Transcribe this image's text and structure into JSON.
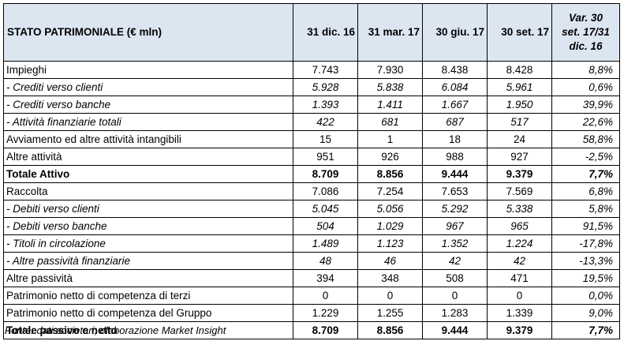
{
  "table": {
    "headers": {
      "label": "STATO PATRIMONIALE (€ mln)",
      "c1": "31 dic. 16",
      "c2": "31 mar. 17",
      "c3": "30 giu. 17",
      "c4": "30 set. 17",
      "var_line1": "Var. 30",
      "var_line2": "set. 17/31",
      "var_line3": "dic. 16"
    },
    "header_background": "#dce6f1",
    "rows": [
      {
        "label": "Impieghi",
        "v": [
          "7.743",
          "7.930",
          "8.438",
          "8.428"
        ],
        "var": "8,8%"
      },
      {
        "label": "- Crediti verso clienti",
        "v": [
          "5.928",
          "5.838",
          "6.084",
          "5.961"
        ],
        "var": "0,6%"
      },
      {
        "label": "- Crediti verso banche",
        "v": [
          "1.393",
          "1.411",
          "1.667",
          "1.950"
        ],
        "var": "39,9%"
      },
      {
        "label": "- Attività finanziarie totali",
        "v": [
          "422",
          "681",
          "687",
          "517"
        ],
        "var": "22,6%"
      },
      {
        "label": "Avviamento ed altre attività intangibili",
        "v": [
          "15",
          "1",
          "18",
          "24"
        ],
        "var": "58,8%"
      },
      {
        "label": "Altre attività",
        "v": [
          "951",
          "926",
          "988",
          "927"
        ],
        "var": "-2,5%"
      },
      {
        "label": "Totale Attivo",
        "v": [
          "8.709",
          "8.856",
          "9.444",
          "9.379"
        ],
        "var": "7,7%"
      },
      {
        "label": "Raccolta",
        "v": [
          "7.086",
          "7.254",
          "7.653",
          "7.569"
        ],
        "var": "6,8%"
      },
      {
        "label": "- Debiti verso clienti",
        "v": [
          "5.045",
          "5.056",
          "5.292",
          "5.338"
        ],
        "var": "5,8%"
      },
      {
        "label": "- Debiti verso banche",
        "v": [
          "504",
          "1.029",
          "967",
          "965"
        ],
        "var": "91,5%"
      },
      {
        "label": "- Titoli in circolazione",
        "v": [
          "1.489",
          "1.123",
          "1.352",
          "1.224"
        ],
        "var": "-17,8%"
      },
      {
        "label": "- Altre passività finanziarie",
        "v": [
          "48",
          "46",
          "42",
          "42"
        ],
        "var": "-13,3%"
      },
      {
        "label": "Altre passività",
        "v": [
          "394",
          "348",
          "508",
          "471"
        ],
        "var": "19,5%"
      },
      {
        "label": "Patrimonio netto di competenza di terzi",
        "v": [
          "0",
          "0",
          "0",
          "0"
        ],
        "var": "0,0%"
      },
      {
        "label": "Patrimonio netto di competenza del Gruppo",
        "v": [
          "1.229",
          "1.255",
          "1.283",
          "1.339"
        ],
        "var": "9,0%"
      },
      {
        "label": "Totale passivo e netto",
        "v": [
          "8.709",
          "8.856",
          "9.444",
          "9.379"
        ],
        "var": "7,7%"
      }
    ]
  },
  "source": "Fonte: dati societari; elaborazione Market Insight"
}
